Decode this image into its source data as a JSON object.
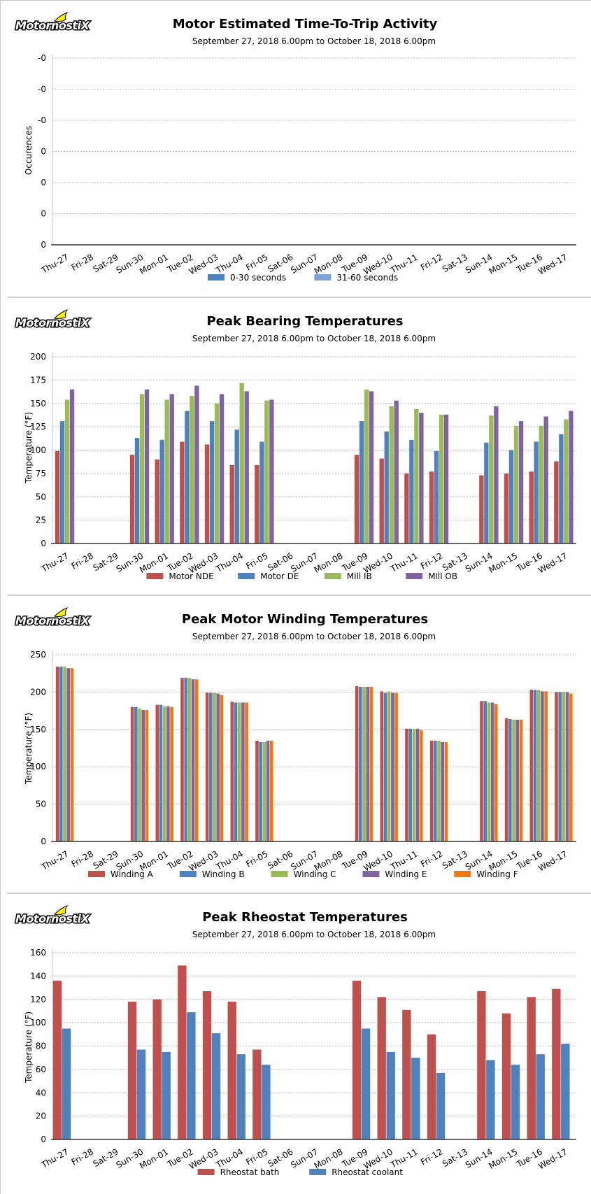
{
  "logo": {
    "text": "MotornostiX"
  },
  "chart_data": [
    {
      "type": "bar",
      "title": "Motor Estimated Time-To-Trip Activity",
      "subtitle": "September 27, 2018 6.00pm to October 18, 2018 6.00pm",
      "xlabel": "",
      "ylabel": "Occurences",
      "yticks": [
        "0",
        "0",
        "0",
        "0",
        "-0",
        "-0",
        "-0"
      ],
      "categories": [
        "Thu-27",
        "Fri-28",
        "Sat-29",
        "Sun-30",
        "Mon-01",
        "Tue-02",
        "Wed-03",
        "Thu-04",
        "Fri-05",
        "Sat-06",
        "Sun-07",
        "Mon-08",
        "Tue-09",
        "Wed-10",
        "Thu-11",
        "Fri-12",
        "Sat-13",
        "Sun-14",
        "Mon-15",
        "Tue-16",
        "Wed-17"
      ],
      "series": [
        {
          "name": "0-30 seconds",
          "color": "#4f81bd",
          "values": [
            null,
            null,
            null,
            null,
            null,
            null,
            null,
            null,
            null,
            null,
            null,
            null,
            null,
            null,
            null,
            null,
            null,
            null,
            null,
            null,
            null
          ]
        },
        {
          "name": "31-60 seconds",
          "color": "#7da3d4",
          "values": [
            null,
            null,
            null,
            null,
            null,
            null,
            null,
            null,
            null,
            null,
            null,
            null,
            null,
            null,
            null,
            null,
            null,
            null,
            null,
            null,
            null
          ]
        }
      ],
      "legend_position": "bottom",
      "grid": true
    },
    {
      "type": "bar",
      "title": "Peak Bearing Temperatures",
      "subtitle": "September 27, 2018 6.00pm to October 18, 2018 6.00pm",
      "xlabel": "",
      "ylabel": "Temperature (°F)",
      "ylim": [
        0,
        200
      ],
      "yticks": [
        "0",
        "25",
        "50",
        "75",
        "100",
        "125",
        "150",
        "175",
        "200"
      ],
      "categories": [
        "Thu-27",
        "Fri-28",
        "Sat-29",
        "Sun-30",
        "Mon-01",
        "Tue-02",
        "Wed-03",
        "Thu-04",
        "Fri-05",
        "Sat-06",
        "Sun-07",
        "Mon-08",
        "Tue-09",
        "Wed-10",
        "Thu-11",
        "Fri-12",
        "Sat-13",
        "Sun-14",
        "Mon-15",
        "Tue-16",
        "Wed-17"
      ],
      "series": [
        {
          "name": "Motor NDE",
          "color": "#c0504d",
          "values": [
            99,
            null,
            null,
            95,
            90,
            109,
            106,
            84,
            84,
            null,
            null,
            null,
            95,
            91,
            75,
            77,
            null,
            73,
            75,
            77,
            88
          ]
        },
        {
          "name": "Motor DE",
          "color": "#4f81bd",
          "values": [
            131,
            null,
            null,
            113,
            111,
            142,
            131,
            122,
            109,
            null,
            null,
            null,
            131,
            120,
            111,
            99,
            null,
            108,
            100,
            109,
            117
          ]
        },
        {
          "name": "Mill IB",
          "color": "#9bbb59",
          "values": [
            154,
            null,
            null,
            160,
            154,
            158,
            150,
            172,
            153,
            null,
            null,
            null,
            165,
            147,
            144,
            138,
            null,
            137,
            126,
            126,
            133
          ]
        },
        {
          "name": "Mill OB",
          "color": "#8064a2",
          "values": [
            165,
            null,
            null,
            165,
            160,
            169,
            160,
            163,
            154,
            null,
            null,
            null,
            163,
            153,
            140,
            138,
            null,
            147,
            131,
            136,
            142
          ]
        }
      ],
      "legend_position": "bottom",
      "grid": true
    },
    {
      "type": "bar",
      "title": "Peak Motor Winding Temperatures",
      "subtitle": "September 27, 2018 6.00pm to October 18, 2018 6.00pm",
      "xlabel": "",
      "ylabel": "Temperature (°F)",
      "ylim": [
        0,
        250
      ],
      "yticks": [
        "0",
        "50",
        "100",
        "150",
        "200",
        "250"
      ],
      "categories": [
        "Thu-27",
        "Fri-28",
        "Sat-29",
        "Sun-30",
        "Mon-01",
        "Tue-02",
        "Wed-03",
        "Thu-04",
        "Fri-05",
        "Sat-06",
        "Sun-07",
        "Mon-08",
        "Tue-09",
        "Wed-10",
        "Thu-11",
        "Fri-12",
        "Sat-13",
        "Sun-14",
        "Mon-15",
        "Tue-16",
        "Wed-17"
      ],
      "series": [
        {
          "name": "Winding A",
          "color": "#c0504d",
          "values": [
            234,
            null,
            null,
            180,
            183,
            219,
            199,
            187,
            135,
            null,
            null,
            null,
            208,
            201,
            151,
            135,
            null,
            188,
            165,
            203,
            200
          ]
        },
        {
          "name": "Winding B",
          "color": "#4f81bd",
          "values": [
            234,
            null,
            null,
            180,
            183,
            219,
            199,
            186,
            133,
            null,
            null,
            null,
            207,
            199,
            151,
            135,
            null,
            188,
            164,
            203,
            200
          ]
        },
        {
          "name": "Winding C",
          "color": "#9bbb59",
          "values": [
            234,
            null,
            null,
            178,
            181,
            219,
            199,
            186,
            133,
            null,
            null,
            null,
            207,
            201,
            151,
            135,
            null,
            186,
            163,
            203,
            200
          ]
        },
        {
          "name": "Winding E",
          "color": "#8064a2",
          "values": [
            232,
            null,
            null,
            176,
            181,
            217,
            198,
            186,
            135,
            null,
            null,
            null,
            207,
            199,
            151,
            133,
            null,
            186,
            163,
            201,
            200
          ]
        },
        {
          "name": "Winding F",
          "color": "#f0780f",
          "values": [
            232,
            null,
            null,
            176,
            180,
            217,
            196,
            186,
            135,
            null,
            null,
            null,
            207,
            199,
            149,
            133,
            null,
            184,
            163,
            201,
            198
          ]
        }
      ],
      "legend_position": "bottom",
      "grid": true
    },
    {
      "type": "bar",
      "title": "Peak Rheostat Temperatures",
      "subtitle": "September 27, 2018 6.00pm to October 18, 2018 6.00pm",
      "xlabel": "",
      "ylabel": "Temperature (°F)",
      "ylim": [
        0,
        160
      ],
      "yticks": [
        "0",
        "20",
        "40",
        "60",
        "80",
        "100",
        "120",
        "140",
        "160"
      ],
      "categories": [
        "Thu-27",
        "Fri-28",
        "Sat-29",
        "Sun-30",
        "Mon-01",
        "Tue-02",
        "Wed-03",
        "Thu-04",
        "Fri-05",
        "Sat-06",
        "Sun-07",
        "Mon-08",
        "Tue-09",
        "Wed-10",
        "Thu-11",
        "Fri-12",
        "Sat-13",
        "Sun-14",
        "Mon-15",
        "Tue-16",
        "Wed-17"
      ],
      "series": [
        {
          "name": "Rheostat bath",
          "color": "#c0504d",
          "values": [
            136,
            null,
            null,
            118,
            120,
            149,
            127,
            118,
            77,
            null,
            null,
            null,
            136,
            122,
            111,
            90,
            null,
            127,
            108,
            122,
            129
          ]
        },
        {
          "name": "Rheostat coolant",
          "color": "#4f81bd",
          "values": [
            95,
            null,
            null,
            77,
            75,
            109,
            91,
            73,
            64,
            null,
            null,
            null,
            95,
            75,
            70,
            57,
            null,
            68,
            64,
            73,
            82
          ]
        }
      ],
      "legend_position": "bottom",
      "grid": true
    }
  ]
}
